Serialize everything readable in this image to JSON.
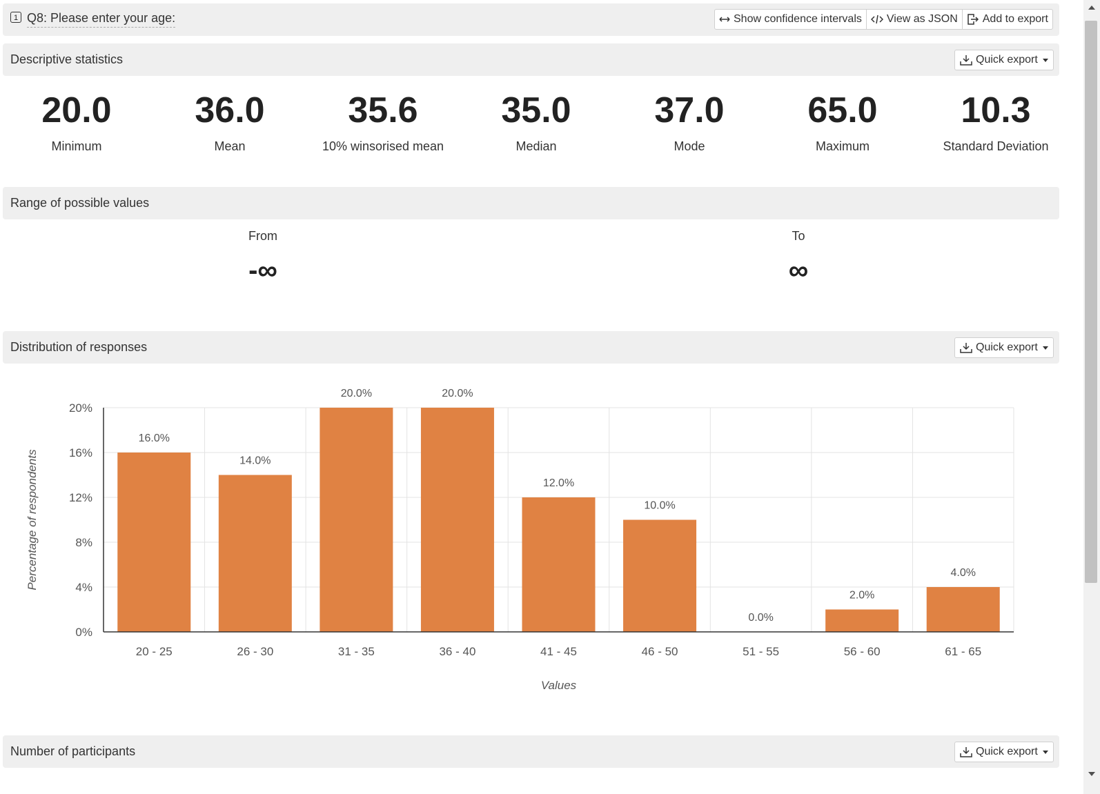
{
  "question": {
    "number_badge": "1",
    "title": "Q8: Please enter your age:",
    "actions": {
      "confidence": "Show confidence intervals",
      "json": "View as JSON",
      "export": "Add to export"
    }
  },
  "descriptive": {
    "title": "Descriptive statistics",
    "quick_export": "Quick export",
    "stats": [
      {
        "value": "20.0",
        "label": "Minimum"
      },
      {
        "value": "36.0",
        "label": "Mean"
      },
      {
        "value": "35.6",
        "label": "10% winsorised mean"
      },
      {
        "value": "35.0",
        "label": "Median"
      },
      {
        "value": "37.0",
        "label": "Mode"
      },
      {
        "value": "65.0",
        "label": "Maximum"
      },
      {
        "value": "10.3",
        "label": "Standard Deviation"
      }
    ]
  },
  "range": {
    "title": "Range of possible values",
    "from_label": "From",
    "from_value": "-∞",
    "to_label": "To",
    "to_value": "∞"
  },
  "distribution": {
    "title": "Distribution of responses",
    "quick_export": "Quick export"
  },
  "participants": {
    "title": "Number of participants",
    "quick_export": "Quick export"
  },
  "chart_data": {
    "type": "bar",
    "categories": [
      "20 - 25",
      "26 - 30",
      "31 - 35",
      "36 - 40",
      "41 - 45",
      "46 - 50",
      "51 - 55",
      "56 - 60",
      "61 - 65"
    ],
    "values": [
      16.0,
      14.0,
      20.0,
      20.0,
      12.0,
      10.0,
      0.0,
      2.0,
      4.0
    ],
    "data_labels": [
      "16.0%",
      "14.0%",
      "20.0%",
      "20.0%",
      "12.0%",
      "10.0%",
      "0.0%",
      "2.0%",
      "4.0%"
    ],
    "xlabel": "Values",
    "ylabel": "Percentage of respondents",
    "ylim": [
      0,
      20
    ],
    "yticks": [
      0,
      4,
      8,
      12,
      16,
      20
    ],
    "ytick_labels": [
      "0%",
      "4%",
      "8%",
      "12%",
      "16%",
      "20%"
    ],
    "grid": true,
    "bar_color": "#e08243"
  }
}
